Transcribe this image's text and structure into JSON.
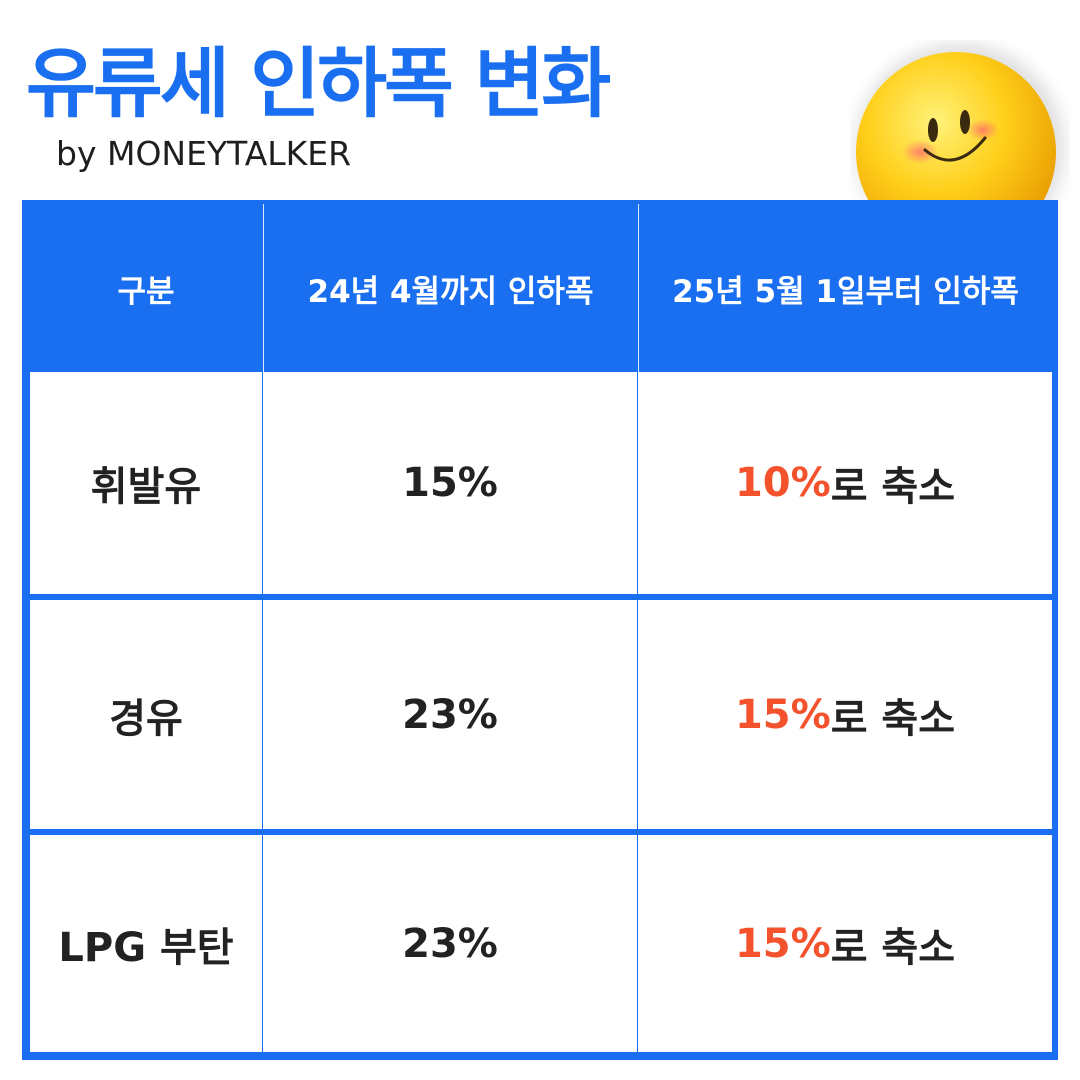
{
  "header": {
    "title": "유류세 인하폭 변화",
    "subtitle": "by MONEYTALKER"
  },
  "table": {
    "columns": [
      "구분",
      "24년 4월까지 인하폭",
      "25년 5월 1일부터 인하폭"
    ],
    "rows": [
      {
        "fuel": "휘발유",
        "until_2404": "15%",
        "from_2505": {
          "highlight": "10%",
          "rest": "로 축소"
        }
      },
      {
        "fuel": "경유",
        "until_2404": "23%",
        "from_2505": {
          "highlight": "15%",
          "rest": "로 축소"
        }
      },
      {
        "fuel": "LPG 부탄",
        "until_2404": "23%",
        "from_2505": {
          "highlight": "15%",
          "rest": "로 축소"
        }
      }
    ]
  }
}
